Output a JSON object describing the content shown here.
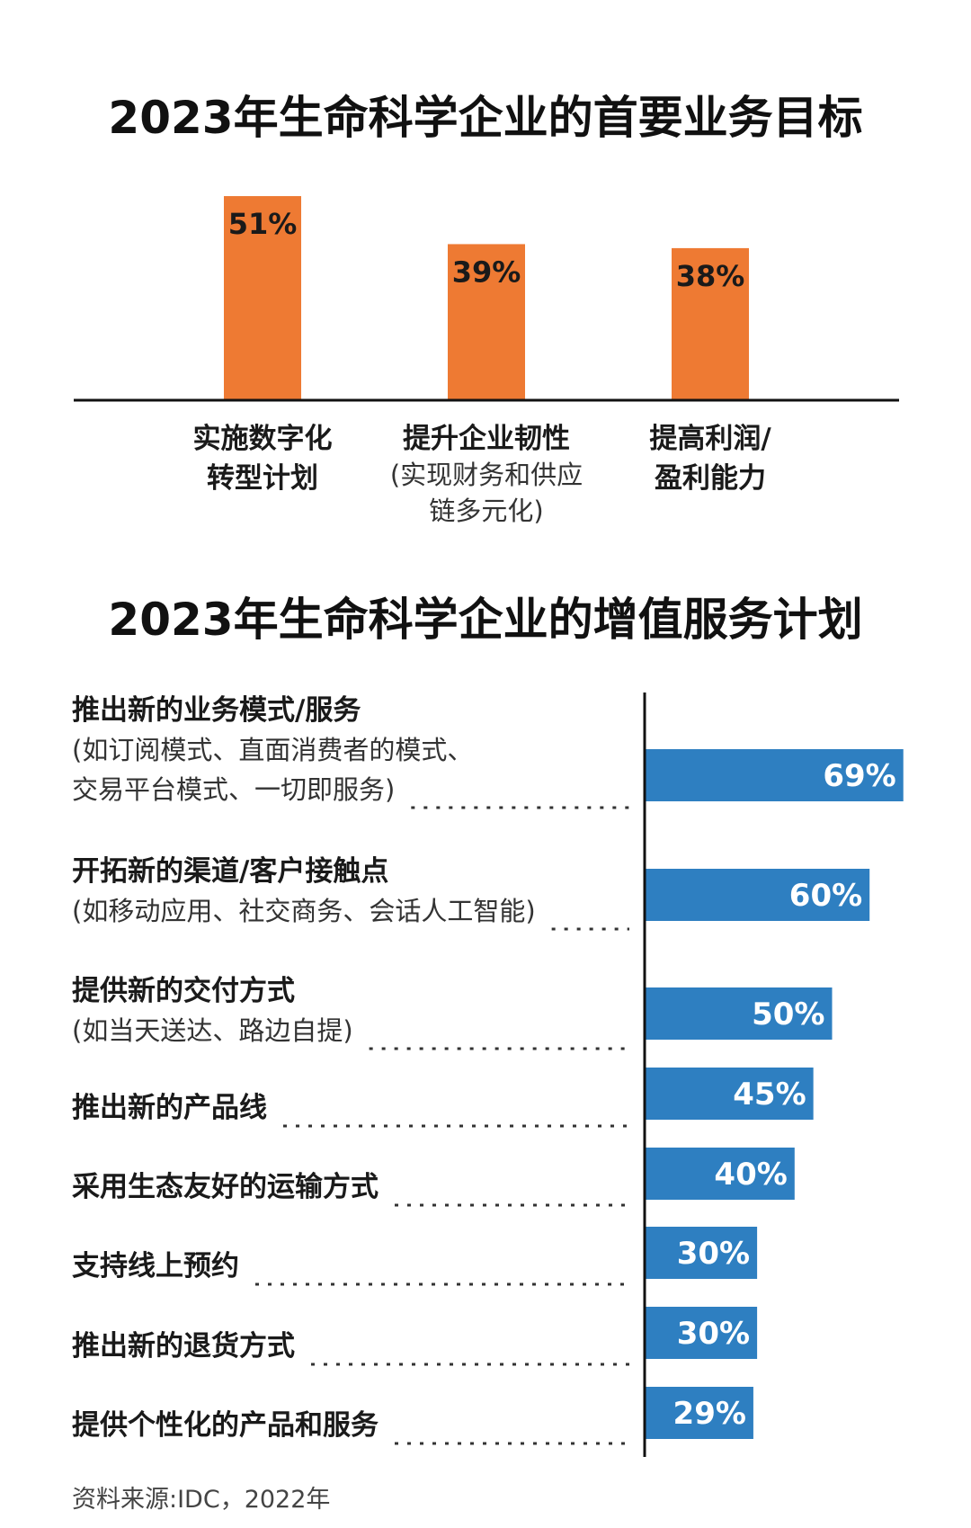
{
  "colors": {
    "orange": "#ee7a33",
    "blue": "#2e7fc1",
    "axis": "#111111",
    "dots": "#333333"
  },
  "chart_data": [
    {
      "type": "bar",
      "title": "2023年生命科学企业的首要业务目标",
      "categories": [
        {
          "main": [
            "实施数字化",
            "转型计划"
          ],
          "sub": []
        },
        {
          "main": [
            "提升企业韧性"
          ],
          "sub": [
            "(实现财务和供应",
            "链多元化)"
          ]
        },
        {
          "main": [
            "提高利润/",
            "盈利能力"
          ],
          "sub": []
        }
      ],
      "values": [
        51,
        39,
        38
      ],
      "labels": [
        "51%",
        "39%",
        "38%"
      ],
      "unit": "%",
      "ylim": [
        0,
        60
      ]
    },
    {
      "type": "bar",
      "orientation": "horizontal",
      "title": "2023年生命科学企业的增值服务计划",
      "categories": [
        {
          "main": "推出新的业务模式/服务",
          "sub": [
            "(如订阅模式、直面消费者的模式、",
            "交易平台模式、一切即服务)"
          ]
        },
        {
          "main": "开拓新的渠道/客户接触点",
          "sub": [
            "(如移动应用、社交商务、会话人工智能)"
          ]
        },
        {
          "main": "提供新的交付方式",
          "sub": [
            "(如当天送达、路边自提)"
          ]
        },
        {
          "main": "推出新的产品线",
          "sub": []
        },
        {
          "main": "采用生态友好的运输方式",
          "sub": []
        },
        {
          "main": "支持线上预约",
          "sub": []
        },
        {
          "main": "推出新的退货方式",
          "sub": []
        },
        {
          "main": "提供个性化的产品和服务",
          "sub": []
        }
      ],
      "values": [
        69,
        60,
        50,
        45,
        40,
        30,
        30,
        29
      ],
      "labels": [
        "69%",
        "60%",
        "50%",
        "45%",
        "40%",
        "30%",
        "30%",
        "29%"
      ],
      "unit": "%",
      "xlim": [
        0,
        69
      ]
    }
  ],
  "source": "资料来源:IDC，2022年"
}
